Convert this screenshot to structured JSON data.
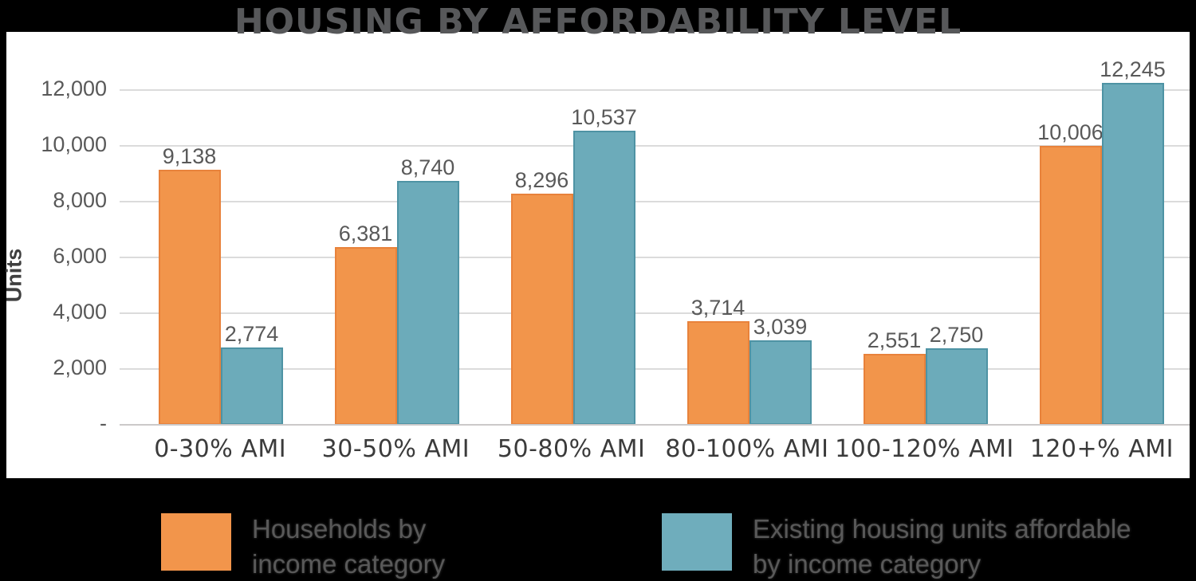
{
  "title": "HOUSING BY AFFORDABILITY LEVEL",
  "y_axis": {
    "label": "Units",
    "ticks": [
      {
        "value": 12000,
        "label": "12,000"
      },
      {
        "value": 10000,
        "label": "10,000"
      },
      {
        "value": 8000,
        "label": "8,000"
      },
      {
        "value": 6000,
        "label": "6,000"
      },
      {
        "value": 4000,
        "label": "4,000"
      },
      {
        "value": 2000,
        "label": "2,000"
      },
      {
        "value": 0,
        "label": "-"
      }
    ]
  },
  "chart_data": {
    "type": "bar",
    "title": "HOUSING BY AFFORDABILITY LEVEL",
    "xlabel": "",
    "ylabel": "Units",
    "ylim": [
      0,
      13000
    ],
    "grid": true,
    "legend_position": "bottom",
    "categories": [
      "0-30% AMI",
      "30-50% AMI",
      "50-80% AMI",
      "80-100% AMI",
      "100-120% AMI",
      "120+% AMI"
    ],
    "series": [
      {
        "key": "households",
        "name": "Households by income category",
        "color": "#F2954B",
        "border_color": "#E8823B",
        "values": [
          9138,
          6381,
          8296,
          3714,
          2551,
          10006
        ],
        "labels": [
          "9,138",
          "6,381",
          "8,296",
          "3,714",
          "2,551",
          "10,006"
        ]
      },
      {
        "key": "existing-units",
        "name": "Existing housing units affordable by income category",
        "color": "#6CABBA",
        "border_color": "#4E93A4",
        "values": [
          2774,
          8740,
          10537,
          3039,
          2750,
          12245
        ],
        "labels": [
          "2,774",
          "8,740",
          "10,537",
          "3,039",
          "2,750",
          "12,245"
        ]
      }
    ]
  },
  "legend": {
    "items": [
      {
        "label": "Households by income category",
        "color": "#F2954B"
      },
      {
        "label": "Existing housing units affordable by income category",
        "color": "#6FADBC"
      }
    ]
  },
  "colors": {
    "background": "#000000",
    "card": "#ffffff",
    "gridline": "#DBDBDB",
    "axis_line": "#CBC9C9",
    "tick_text": "#595959",
    "category_text": "#3B3B3B",
    "title_text": "#57585A"
  }
}
